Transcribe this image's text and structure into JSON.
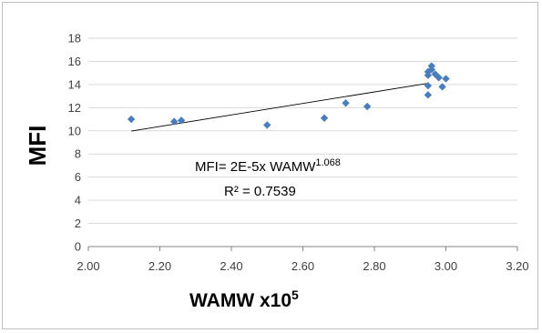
{
  "chart_data": {
    "type": "scatter",
    "xlabel": "WAMW x10",
    "xlabel_superscript": "5",
    "ylabel": "MFI",
    "xlim": [
      2.0,
      3.2
    ],
    "ylim": [
      0,
      18
    ],
    "x_ticks": [
      "2.00",
      "2.20",
      "2.40",
      "2.60",
      "2.80",
      "3.00",
      "3.20"
    ],
    "y_ticks": [
      "0",
      "2",
      "4",
      "6",
      "8",
      "10",
      "12",
      "14",
      "16",
      "18"
    ],
    "grid": "horizontal",
    "legend": "none",
    "marker": "diamond",
    "marker_color": "#4a7ebb",
    "series": [
      {
        "x": [
          2.12,
          2.24,
          2.26,
          2.5,
          2.66,
          2.72,
          2.78,
          2.95,
          2.95,
          2.95,
          2.95,
          2.96,
          2.96,
          2.97,
          2.98,
          2.99,
          3.0
        ],
        "y": [
          11.0,
          10.8,
          10.9,
          10.5,
          11.1,
          12.4,
          12.1,
          13.1,
          13.9,
          14.8,
          15.1,
          15.6,
          15.3,
          14.9,
          14.6,
          13.8,
          14.5
        ]
      }
    ],
    "trendline": {
      "type": "power",
      "color": "#000000",
      "x_range": [
        2.12,
        2.95
      ],
      "equation_main": "MFI= 2E-5x WAMW",
      "equation_exponent": "1.068",
      "r2_label": "R² = 0.7539"
    }
  }
}
